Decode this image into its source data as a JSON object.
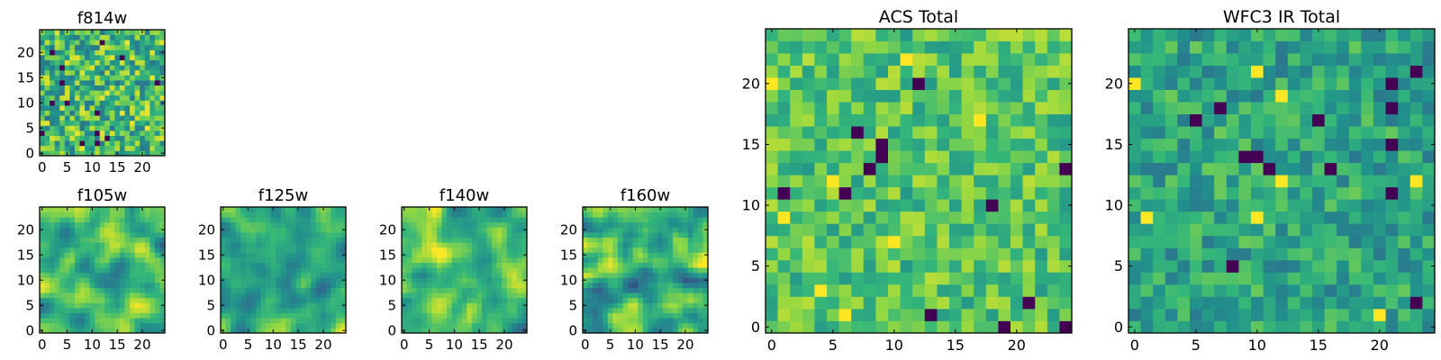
{
  "colors": {
    "colormap": [
      "#440154",
      "#31688e",
      "#21918c",
      "#35b779",
      "#90d743",
      "#fde725"
    ],
    "frame": "#000000"
  },
  "chart_data": [
    {
      "type": "heatmap",
      "title": "f814w",
      "grid_size": 25,
      "x_ticks": [
        "0",
        "5",
        "10",
        "15",
        "20"
      ],
      "y_ticks": [
        "0",
        "5",
        "10",
        "15",
        "20"
      ],
      "description": "25x25 noise image with a few dark outlier pixels",
      "seed": 11,
      "smooth": 0,
      "mean": 0.62,
      "spread": 0.16,
      "dark_pixels": 14,
      "bright_pixels": 0
    },
    {
      "type": "heatmap",
      "title": "f105w",
      "grid_size": 25,
      "x_ticks": [
        "0",
        "5",
        "10",
        "15",
        "20"
      ],
      "y_ticks": [
        "0",
        "5",
        "10",
        "15",
        "20"
      ],
      "description": "25x25 smoothed noise image",
      "seed": 21,
      "smooth": 2,
      "mean": 0.58,
      "spread": 0.18,
      "dark_pixels": 0,
      "bright_pixels": 0
    },
    {
      "type": "heatmap",
      "title": "f125w",
      "grid_size": 25,
      "x_ticks": [
        "0",
        "5",
        "10",
        "15",
        "20"
      ],
      "y_ticks": [
        "0",
        "5",
        "10",
        "15",
        "20"
      ],
      "description": "25x25 smoothed noise image",
      "seed": 31,
      "smooth": 2,
      "mean": 0.6,
      "spread": 0.18,
      "dark_pixels": 0,
      "bright_pixels": 0
    },
    {
      "type": "heatmap",
      "title": "f140w",
      "grid_size": 25,
      "x_ticks": [
        "0",
        "5",
        "10",
        "15",
        "20"
      ],
      "y_ticks": [
        "0",
        "5",
        "10",
        "15",
        "20"
      ],
      "description": "25x25 smoothed noise image",
      "seed": 41,
      "smooth": 2,
      "mean": 0.6,
      "spread": 0.2,
      "dark_pixels": 0,
      "bright_pixels": 0
    },
    {
      "type": "heatmap",
      "title": "f160w",
      "grid_size": 25,
      "x_ticks": [
        "0",
        "5",
        "10",
        "15",
        "20"
      ],
      "y_ticks": [
        "0",
        "5",
        "10",
        "15",
        "20"
      ],
      "description": "25x25 smoothed noise image",
      "seed": 51,
      "smooth": 2,
      "mean": 0.6,
      "spread": 0.2,
      "dark_pixels": 0,
      "bright_pixels": 0
    },
    {
      "type": "heatmap",
      "title": "ACS Total",
      "grid_size": 25,
      "x_ticks": [
        "0",
        "5",
        "10",
        "15",
        "20"
      ],
      "y_ticks": [
        "0",
        "5",
        "10",
        "15",
        "20"
      ],
      "description": "25x25 noise image, mostly green to yellow-green with scattered dark pixels",
      "seed": 61,
      "smooth": 0,
      "mean": 0.66,
      "spread": 0.1,
      "dark_pixels": 14,
      "bright_pixels": 8
    },
    {
      "type": "heatmap",
      "title": "WFC3 IR Total",
      "grid_size": 25,
      "x_ticks": [
        "0",
        "5",
        "10",
        "15",
        "20"
      ],
      "y_ticks": [
        "0",
        "5",
        "10",
        "15",
        "20"
      ],
      "description": "25x25 noise image, mostly teal to green with scattered dark pixels and a bright yellow patch",
      "seed": 71,
      "smooth": 0,
      "mean": 0.5,
      "spread": 0.1,
      "dark_pixels": 14,
      "bright_pixels": 8
    }
  ]
}
